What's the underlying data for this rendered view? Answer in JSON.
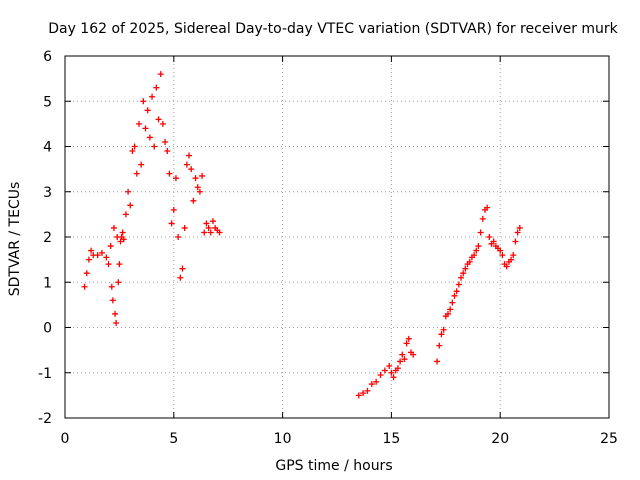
{
  "chart_data": {
    "type": "scatter",
    "title": "Day 162 of 2025, Sidereal Day-to-day VTEC variation (SDTVAR) for receiver murk",
    "xlabel": "GPS time / hours",
    "ylabel": "SDTVAR / TECUs",
    "xlim": [
      0,
      25
    ],
    "ylim": [
      -2,
      6
    ],
    "xticks": [
      0,
      5,
      10,
      15,
      20,
      25
    ],
    "yticks": [
      -2,
      -1,
      0,
      1,
      2,
      3,
      4,
      5,
      6
    ],
    "xtick_labels": [
      "0",
      "5",
      "10",
      "15",
      "20",
      "25"
    ],
    "ytick_labels": [
      "-2",
      "-1",
      "0",
      "1",
      "2",
      "3",
      "4",
      "5",
      "6"
    ],
    "grid": true,
    "marker": "plus",
    "color": "#ff0000",
    "series": [
      {
        "name": "segment-1",
        "x": [
          0.9,
          1.0,
          1.1,
          1.2,
          1.3,
          1.5,
          1.7,
          1.9,
          2.0,
          2.1,
          2.15,
          2.2,
          2.25,
          2.3,
          2.35,
          2.4,
          2.45,
          2.5,
          2.55,
          2.6,
          2.65,
          2.7,
          2.8,
          2.9,
          3.0,
          3.1,
          3.2,
          3.3,
          3.4,
          3.5,
          3.6,
          3.7,
          3.8,
          3.9,
          4.0,
          4.1,
          4.2,
          4.3,
          4.4,
          4.5,
          4.6,
          4.7,
          4.8,
          4.9,
          5.0,
          5.1,
          5.2,
          5.3,
          5.4,
          5.5,
          5.6,
          5.7,
          5.8,
          5.9,
          6.0,
          6.1,
          6.2,
          6.3,
          6.4,
          6.5,
          6.6,
          6.7,
          6.8,
          6.9,
          7.0,
          7.1
        ],
        "y": [
          0.9,
          1.2,
          1.5,
          1.7,
          1.6,
          1.6,
          1.65,
          1.55,
          1.4,
          1.8,
          0.9,
          0.6,
          2.2,
          0.3,
          0.1,
          2.0,
          1.0,
          1.4,
          1.9,
          2.0,
          2.1,
          1.95,
          2.5,
          3.0,
          2.7,
          3.9,
          4.0,
          3.4,
          4.5,
          3.6,
          5.0,
          4.4,
          4.8,
          4.2,
          5.1,
          4.0,
          5.3,
          4.6,
          5.6,
          4.5,
          4.1,
          3.9,
          3.4,
          2.3,
          2.6,
          3.3,
          2.0,
          1.1,
          1.3,
          2.2,
          3.6,
          3.8,
          3.5,
          2.8,
          3.3,
          3.1,
          3.0,
          3.35,
          2.1,
          2.3,
          2.2,
          2.1,
          2.35,
          2.2,
          2.15,
          2.1
        ]
      },
      {
        "name": "segment-2",
        "x": [
          13.5,
          13.7,
          13.9,
          14.1,
          14.3,
          14.5,
          14.7,
          14.9,
          15.0,
          15.1,
          15.2,
          15.3,
          15.4,
          15.5,
          15.6,
          15.7,
          15.8,
          15.9,
          16.0
        ],
        "y": [
          -1.5,
          -1.45,
          -1.4,
          -1.25,
          -1.2,
          -1.05,
          -0.95,
          -0.85,
          -1.0,
          -1.1,
          -0.95,
          -0.9,
          -0.75,
          -0.6,
          -0.7,
          -0.35,
          -0.25,
          -0.55,
          -0.6
        ]
      },
      {
        "name": "segment-3",
        "x": [
          17.1,
          17.2,
          17.3,
          17.4,
          17.5,
          17.6,
          17.7,
          17.8,
          17.9,
          18.0,
          18.1,
          18.2,
          18.3,
          18.4,
          18.5,
          18.6,
          18.7,
          18.8,
          18.9,
          19.0,
          19.1,
          19.2,
          19.3,
          19.4,
          19.5,
          19.6,
          19.7,
          19.8,
          19.9,
          20.0,
          20.1,
          20.2,
          20.3,
          20.4,
          20.5,
          20.6,
          20.7,
          20.8,
          20.9
        ],
        "y": [
          -0.75,
          -0.4,
          -0.15,
          -0.05,
          0.25,
          0.3,
          0.4,
          0.55,
          0.7,
          0.8,
          0.95,
          1.1,
          1.2,
          1.3,
          1.4,
          1.45,
          1.55,
          1.6,
          1.7,
          1.8,
          2.1,
          2.4,
          2.6,
          2.65,
          2.0,
          1.85,
          1.9,
          1.8,
          1.75,
          1.7,
          1.6,
          1.4,
          1.35,
          1.45,
          1.5,
          1.6,
          1.9,
          2.1,
          2.2
        ]
      }
    ]
  }
}
